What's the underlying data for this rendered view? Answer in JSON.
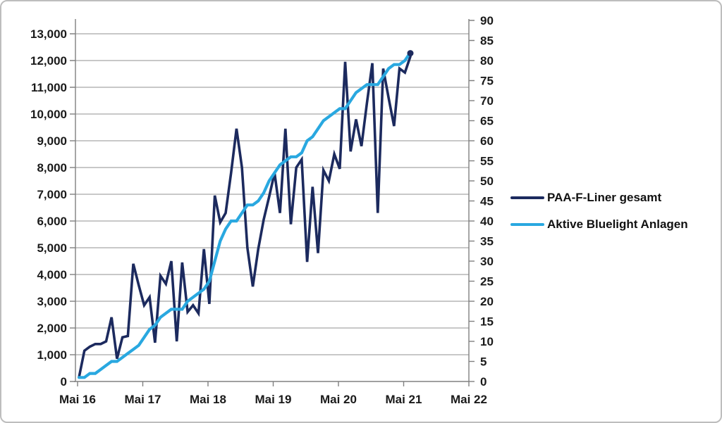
{
  "chart_data": {
    "type": "line",
    "title": "",
    "months": [
      "Mai 16",
      "Jun 16",
      "Jul 16",
      "Aug 16",
      "Sep 16",
      "Okt 16",
      "Nov 16",
      "Dez 16",
      "Jan 17",
      "Feb 17",
      "Mär 17",
      "Apr 17",
      "Mai 17",
      "Jun 17",
      "Jul 17",
      "Aug 17",
      "Sep 17",
      "Okt 17",
      "Nov 17",
      "Dez 17",
      "Jan 18",
      "Feb 18",
      "Mär 18",
      "Apr 18",
      "Mai 18",
      "Jun 18",
      "Jul 18",
      "Aug 18",
      "Sep 18",
      "Okt 18",
      "Nov 18",
      "Dez 18",
      "Jan 19",
      "Feb 19",
      "Mär 19",
      "Apr 19",
      "Mai 19",
      "Jun 19",
      "Jul 19",
      "Aug 19",
      "Sep 19",
      "Okt 19",
      "Nov 19",
      "Dez 19",
      "Jan 20",
      "Feb 20",
      "Mär 20",
      "Apr 20",
      "Mai 20",
      "Jun 20",
      "Jul 20",
      "Aug 20",
      "Sep 20",
      "Okt 20",
      "Nov 20",
      "Dez 20",
      "Jan 21",
      "Feb 21",
      "Mär 21",
      "Apr 21",
      "Mai 21",
      "Jun 21"
    ],
    "series": [
      {
        "name": "PAA-F-Liner gesamt",
        "axis": "left",
        "color": "#1c2a5e",
        "values": [
          150,
          1150,
          1300,
          1400,
          1400,
          1500,
          2400,
          850,
          1650,
          1700,
          4400,
          3600,
          2850,
          3150,
          1450,
          3950,
          3650,
          4500,
          1500,
          4450,
          2600,
          2850,
          2550,
          4950,
          2900,
          6950,
          5950,
          6300,
          7800,
          9450,
          8000,
          5000,
          3550,
          4950,
          6050,
          6900,
          7800,
          6300,
          9450,
          5880,
          8000,
          8300,
          4470,
          7280,
          4800,
          7900,
          7500,
          8500,
          7950,
          11950,
          8600,
          9800,
          8800,
          10400,
          11900,
          6300,
          11700,
          10600,
          9550,
          11700,
          11550,
          12150
        ]
      },
      {
        "name": "Aktive Bluelight Anlagen",
        "axis": "right",
        "color": "#29a8e0",
        "values": [
          1,
          1,
          2,
          2,
          3,
          4,
          5,
          5,
          6,
          7,
          8,
          9,
          11,
          13,
          14,
          16,
          17,
          18,
          18,
          18,
          20,
          21,
          22,
          23,
          25,
          30,
          35,
          38,
          40,
          40,
          42,
          44,
          44,
          45,
          47,
          50,
          52,
          54,
          55,
          56,
          56,
          57,
          60,
          61,
          63,
          65,
          66,
          67,
          68,
          68,
          70,
          72,
          73,
          74,
          74,
          74,
          76,
          78,
          79,
          79,
          80,
          82
        ]
      }
    ],
    "x_axis": {
      "tick_labels": [
        "Mai 16",
        "Mai 17",
        "Mai 18",
        "Mai 19",
        "Mai 20",
        "Mai 21",
        "Mai 22"
      ]
    },
    "left_axis": {
      "min": 0,
      "max": 13500,
      "tick_step": 1000,
      "tick_labels": [
        "0",
        "1,000",
        "2,000",
        "3,000",
        "4,000",
        "5,000",
        "6,000",
        "7,000",
        "8,000",
        "9,000",
        "10,000",
        "11,000",
        "12,000",
        "13,000"
      ]
    },
    "right_axis": {
      "min": 0,
      "max": 90,
      "tick_step": 5,
      "tick_labels": [
        "0",
        "5",
        "10",
        "15",
        "20",
        "25",
        "30",
        "35",
        "40",
        "45",
        "50",
        "55",
        "60",
        "65",
        "70",
        "75",
        "80",
        "85",
        "90"
      ]
    },
    "style": {
      "gridline_color": "#a6a6a6",
      "axis_color": "#808080",
      "text_color": "#1a1a1a",
      "grid": "horizontal",
      "legend_position": "right"
    }
  }
}
